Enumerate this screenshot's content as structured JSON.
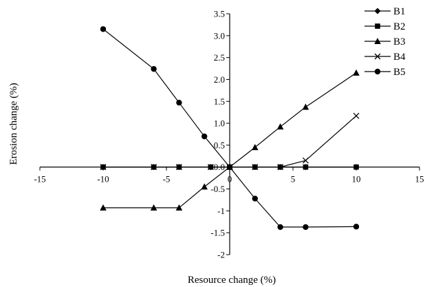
{
  "chart_data": {
    "type": "line",
    "title": "",
    "xlabel": "Resource change (%)",
    "ylabel": "Erosion change (%)",
    "xlim": [
      -15,
      15
    ],
    "ylim": [
      -2,
      3.5
    ],
    "x_ticks": [
      -15,
      -10,
      -5,
      0,
      5,
      10,
      15
    ],
    "x_tick_labels": [
      "-15",
      "-10",
      "-5",
      "0",
      "5",
      "10",
      "15"
    ],
    "y_ticks": [
      3.5,
      3.0,
      2.5,
      2.0,
      1.5,
      1.0,
      0.5,
      0.0,
      -0.5,
      -1,
      -1.5,
      -2
    ],
    "y_tick_labels": [
      "3.5",
      "3.0",
      "2.5",
      "2.0",
      "1.5",
      "1.0",
      "0.5",
      "0.0",
      "-0.5",
      "-1",
      "-1.5",
      "-2"
    ],
    "grid": false,
    "legend_position": "top-right",
    "series": [
      {
        "name": "B1",
        "marker": "diamond",
        "x": [
          -10,
          -6,
          -4,
          -1.5,
          0,
          2,
          4,
          6,
          10
        ],
        "y": [
          0,
          0,
          0,
          0,
          0,
          0,
          0,
          0,
          0
        ]
      },
      {
        "name": "B2",
        "marker": "square",
        "x": [
          -10,
          -6,
          -4,
          -1.5,
          0,
          2,
          4,
          6,
          10
        ],
        "y": [
          0,
          0,
          0,
          0,
          0,
          0,
          0,
          0,
          0
        ]
      },
      {
        "name": "B3",
        "marker": "triangle",
        "x": [
          -10,
          -6,
          -4,
          -2,
          0,
          2,
          4,
          6,
          10
        ],
        "y": [
          -0.93,
          -0.93,
          -0.93,
          -0.45,
          0,
          0.45,
          0.92,
          1.37,
          2.15
        ]
      },
      {
        "name": "B4",
        "marker": "x",
        "x": [
          -10,
          -6,
          -4,
          -1.5,
          0,
          2,
          4,
          6,
          10
        ],
        "y": [
          0,
          0,
          0,
          0,
          0,
          0,
          0,
          0.15,
          1.17
        ]
      },
      {
        "name": "B5",
        "marker": "circle",
        "x": [
          -10,
          -6,
          -4,
          -2,
          0,
          2,
          4,
          6,
          10
        ],
        "y": [
          3.15,
          2.24,
          1.47,
          0.7,
          0,
          -0.72,
          -1.37,
          -1.37,
          -1.36
        ]
      }
    ]
  }
}
